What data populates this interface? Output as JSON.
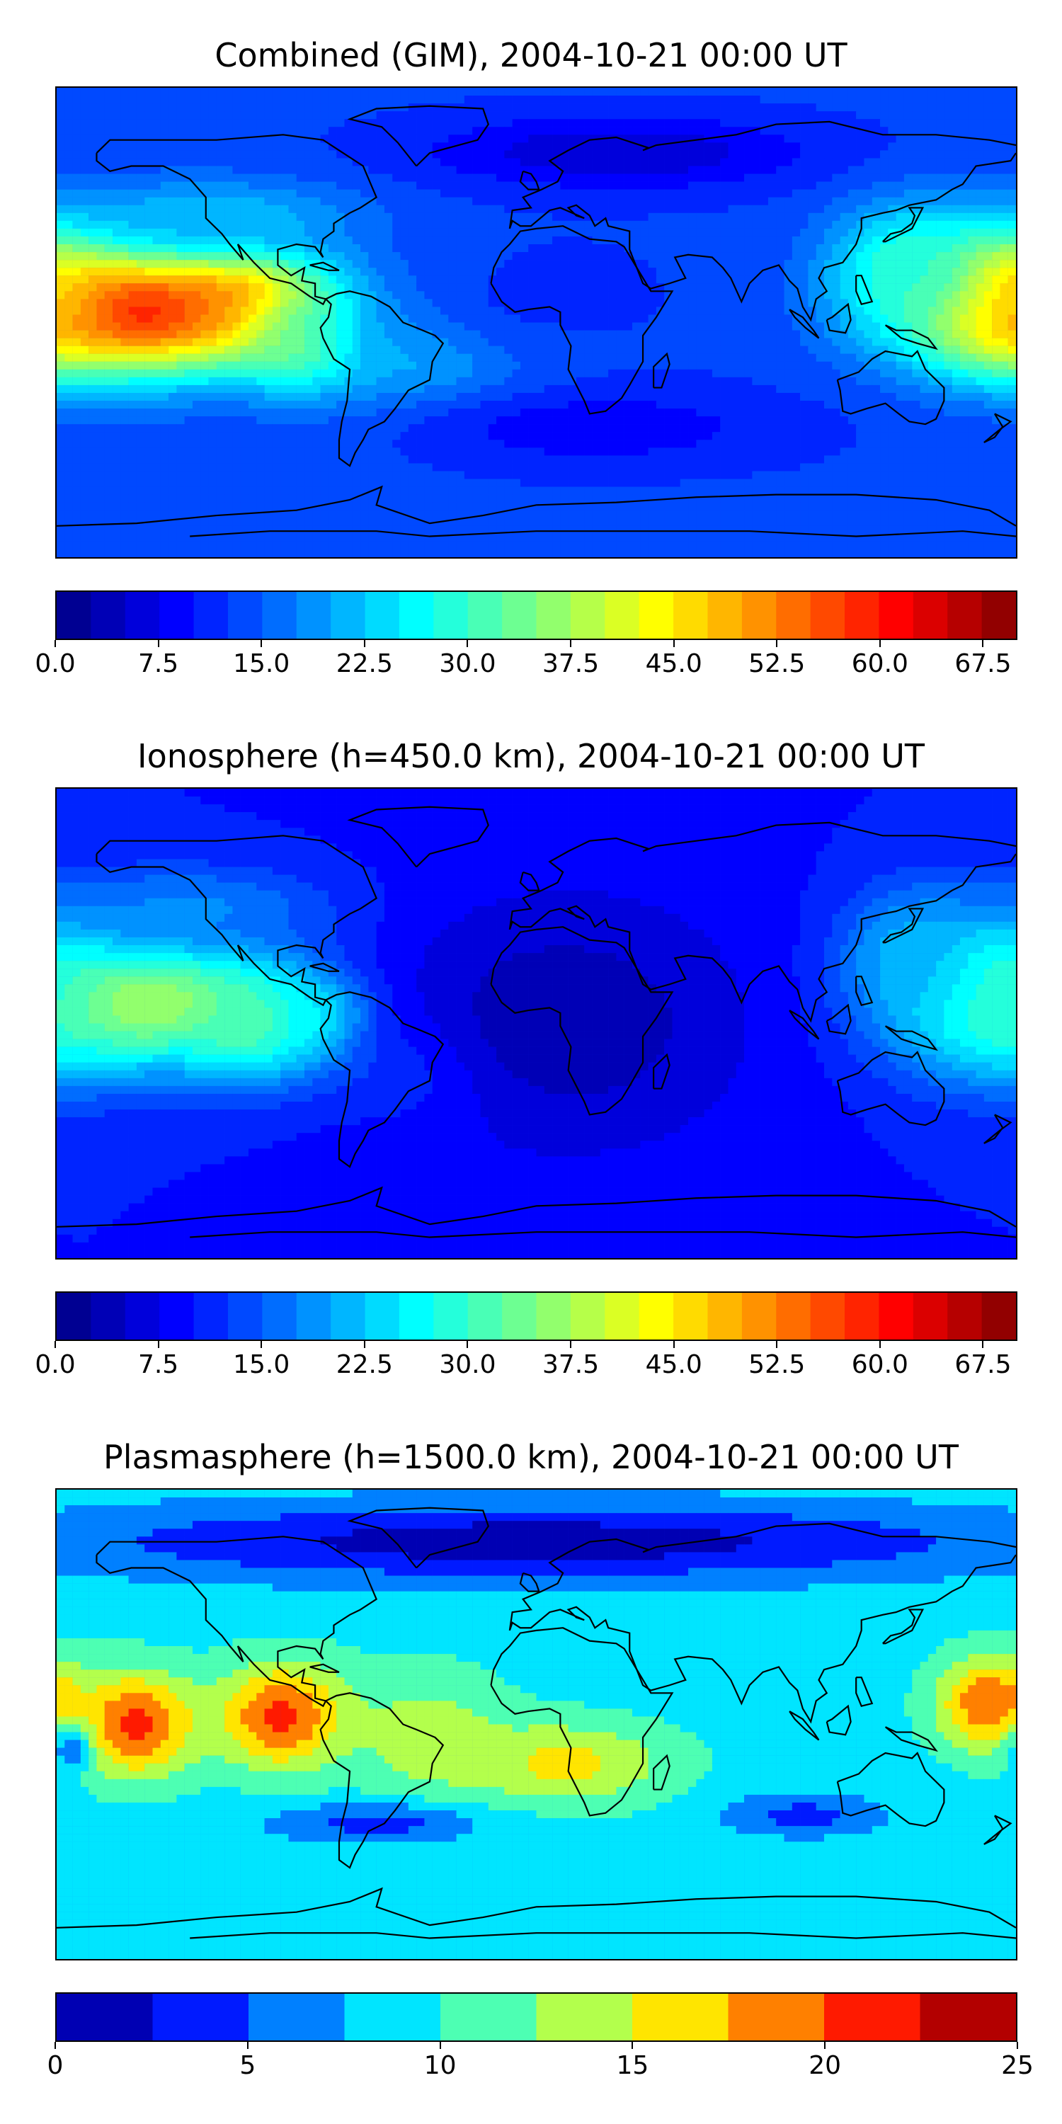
{
  "panels": [
    {
      "title": "Combined (GIM), 2004-10-21 00:00 UT",
      "colorbar": {
        "vmin": 0,
        "vmax": 70,
        "n_levels": 28,
        "tick_labels": [
          "0.0",
          "7.5",
          "15.0",
          "22.5",
          "30.0",
          "37.5",
          "45.0",
          "52.5",
          "60.0",
          "67.5"
        ],
        "tick_values": [
          0,
          7.5,
          15,
          22.5,
          30,
          37.5,
          45,
          52.5,
          60,
          67.5
        ]
      },
      "field": {
        "background": 13,
        "blobs": [
          {
            "lon": -150,
            "lat": 5,
            "rx": 60,
            "ry": 24,
            "v": 62
          },
          {
            "lon": -110,
            "lat": 8,
            "rx": 30,
            "ry": 16,
            "v": 55
          },
          {
            "lon": -85,
            "lat": -5,
            "rx": 25,
            "ry": 20,
            "v": 38
          },
          {
            "lon": 175,
            "lat": 10,
            "rx": 30,
            "ry": 24,
            "v": 50
          },
          {
            "lon": 140,
            "lat": 20,
            "rx": 30,
            "ry": 25,
            "v": 30
          },
          {
            "lon": -40,
            "lat": -10,
            "rx": 40,
            "ry": 25,
            "v": 24
          },
          {
            "lon": -120,
            "lat": 40,
            "rx": 55,
            "ry": 15,
            "v": 22
          },
          {
            "lon": 30,
            "lat": 65,
            "rx": 70,
            "ry": 14,
            "v": 5
          },
          {
            "lon": 20,
            "lat": -40,
            "rx": 70,
            "ry": 15,
            "v": 8
          },
          {
            "lon": 0,
            "lat": 10,
            "rx": 60,
            "ry": 30,
            "v": 12
          }
        ]
      }
    },
    {
      "title": "Ionosphere  (h=450.0 km), 2004-10-21 00:00 UT",
      "colorbar": {
        "vmin": 0,
        "vmax": 70,
        "n_levels": 28,
        "tick_labels": [
          "0.0",
          "7.5",
          "15.0",
          "22.5",
          "30.0",
          "37.5",
          "45.0",
          "52.5",
          "60.0",
          "67.5"
        ],
        "tick_values": [
          0,
          7.5,
          15,
          22.5,
          30,
          37.5,
          45,
          52.5,
          60,
          67.5
        ]
      },
      "field": {
        "background": 10,
        "blobs": [
          {
            "lon": -150,
            "lat": 8,
            "rx": 60,
            "ry": 25,
            "v": 40
          },
          {
            "lon": -105,
            "lat": 0,
            "rx": 25,
            "ry": 20,
            "v": 34
          },
          {
            "lon": -80,
            "lat": 0,
            "rx": 18,
            "ry": 15,
            "v": 32
          },
          {
            "lon": 170,
            "lat": 12,
            "rx": 35,
            "ry": 30,
            "v": 30
          },
          {
            "lon": 140,
            "lat": 25,
            "rx": 25,
            "ry": 25,
            "v": 22
          },
          {
            "lon": -40,
            "lat": -15,
            "rx": 35,
            "ry": 20,
            "v": 18
          },
          {
            "lon": 10,
            "lat": 0,
            "rx": 70,
            "ry": 50,
            "v": 3
          },
          {
            "lon": -130,
            "lat": 45,
            "rx": 50,
            "ry": 15,
            "v": 18
          }
        ]
      }
    },
    {
      "title": "Plasmasphere (h=1500.0 km), 2004-10-21 00:00 UT",
      "colorbar": {
        "vmin": 0,
        "vmax": 25,
        "n_levels": 10,
        "tick_labels": [
          "0",
          "5",
          "10",
          "15",
          "20",
          "25"
        ],
        "tick_values": [
          0,
          5,
          10,
          15,
          20,
          25
        ]
      },
      "field": {
        "background": 9,
        "blobs": [
          {
            "lon": -150,
            "lat": 0,
            "rx": 22,
            "ry": 20,
            "v": 21
          },
          {
            "lon": -95,
            "lat": 3,
            "rx": 25,
            "ry": 20,
            "v": 21
          },
          {
            "lon": 170,
            "lat": 8,
            "rx": 20,
            "ry": 18,
            "v": 20
          },
          {
            "lon": 10,
            "lat": -15,
            "rx": 40,
            "ry": 16,
            "v": 16
          },
          {
            "lon": -40,
            "lat": -5,
            "rx": 30,
            "ry": 25,
            "v": 14
          },
          {
            "lon": 0,
            "lat": 70,
            "rx": 180,
            "ry": 15,
            "v": 1
          },
          {
            "lon": -60,
            "lat": -38,
            "rx": 40,
            "ry": 8,
            "v": 4
          },
          {
            "lon": 100,
            "lat": -35,
            "rx": 30,
            "ry": 8,
            "v": 4
          },
          {
            "lon": -175,
            "lat": -10,
            "rx": 8,
            "ry": 10,
            "v": 6
          }
        ]
      }
    }
  ]
}
